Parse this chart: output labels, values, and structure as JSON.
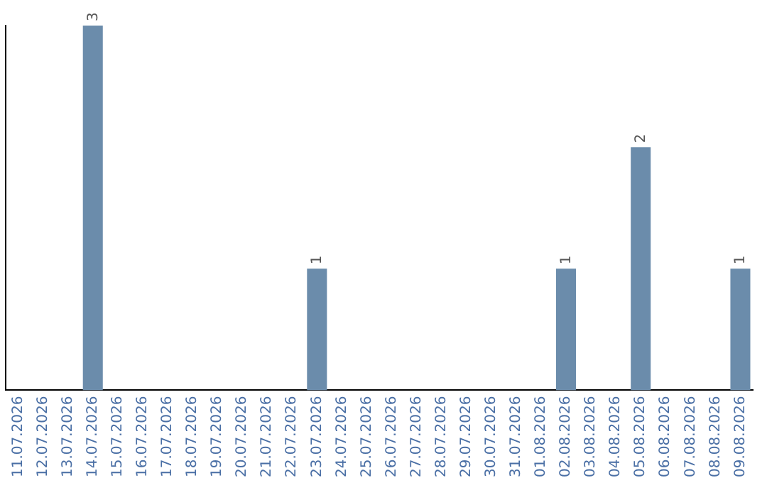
{
  "chart_data": {
    "type": "bar",
    "categories": [
      "11.07.2026",
      "12.07.2026",
      "13.07.2026",
      "14.07.2026",
      "15.07.2026",
      "16.07.2026",
      "17.07.2026",
      "18.07.2026",
      "19.07.2026",
      "20.07.2026",
      "21.07.2026",
      "22.07.2026",
      "23.07.2026",
      "24.07.2026",
      "25.07.2026",
      "26.07.2026",
      "27.07.2026",
      "28.07.2026",
      "29.07.2026",
      "30.07.2026",
      "31.07.2026",
      "01.08.2026",
      "02.08.2026",
      "03.08.2026",
      "04.08.2026",
      "05.08.2026",
      "06.08.2026",
      "07.08.2026",
      "08.08.2026",
      "09.08.2026"
    ],
    "values": [
      0,
      0,
      0,
      3,
      0,
      0,
      0,
      0,
      0,
      0,
      0,
      0,
      1,
      0,
      0,
      0,
      0,
      0,
      0,
      0,
      0,
      0,
      1,
      0,
      0,
      2,
      0,
      0,
      0,
      1
    ],
    "value_labels": [
      null,
      null,
      null,
      "3",
      null,
      null,
      null,
      null,
      null,
      null,
      null,
      null,
      "1",
      null,
      null,
      null,
      null,
      null,
      null,
      null,
      null,
      null,
      "1",
      null,
      null,
      "2",
      null,
      null,
      null,
      "1"
    ],
    "color": "#6b8cab",
    "grid": false,
    "legend": false,
    "tick_labels": "x"
  }
}
